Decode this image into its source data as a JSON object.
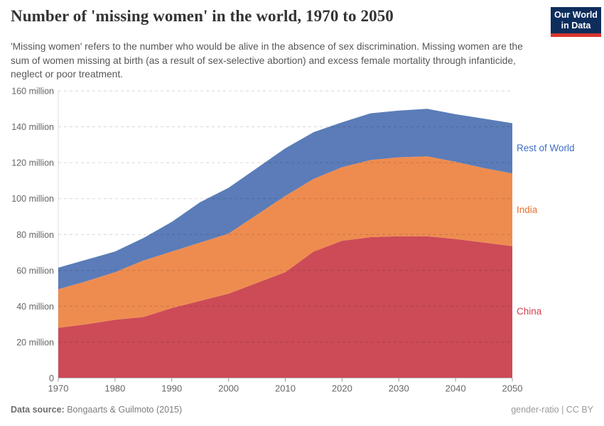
{
  "header": {
    "title": "Number of 'missing women' in the world, 1970 to 2050",
    "subtitle": "'Missing women' refers to the number who would be alive in the absence of sex discrimination. Missing women are the sum of women missing at birth (as a result of sex-selective abortion) and excess female mortality through infanticide, neglect or poor treatment.",
    "logo": {
      "line1": "Our World",
      "line2": "in Data"
    }
  },
  "footer": {
    "datasource_label": "Data source:",
    "datasource_value": "Bongaarts & Guilmoto (2015)",
    "license": "gender-ratio | CC BY"
  },
  "chart_data": {
    "type": "area",
    "stacked": true,
    "title": "Number of 'missing women' in the world, 1970 to 2050",
    "xlabel": "",
    "ylabel": "",
    "grid": "dashed",
    "legend_position": "right-inline",
    "ylim": [
      0,
      160
    ],
    "x": [
      1970,
      1975,
      1980,
      1985,
      1990,
      1995,
      2000,
      2005,
      2010,
      2015,
      2020,
      2025,
      2030,
      2035,
      2040,
      2045,
      2050
    ],
    "series": [
      {
        "name": "China",
        "color": "#cc4b57",
        "label_color": "#d73e4e",
        "values": [
          28,
          30,
          32.5,
          34,
          39,
          43,
          47,
          53,
          59,
          70.5,
          76.5,
          78.5,
          79,
          79,
          77.5,
          75.5,
          73.5
        ]
      },
      {
        "name": "India",
        "color": "#ee8c50",
        "label_color": "#ec6f2d",
        "values": [
          21.5,
          24,
          26.5,
          31.5,
          31.5,
          32.5,
          33.5,
          38,
          42.5,
          40.5,
          41,
          43,
          44,
          44.5,
          43,
          41.5,
          40.5
        ]
      },
      {
        "name": "Rest of World",
        "color": "#5b7cb8",
        "label_color": "#3f6dc6",
        "values": [
          12,
          12,
          11.5,
          12.5,
          16.5,
          22.5,
          25.5,
          26,
          26.5,
          26,
          25,
          26,
          26,
          26.5,
          26.5,
          27.5,
          28
        ]
      }
    ],
    "yticks": [
      {
        "value": 0,
        "label": "0"
      },
      {
        "value": 20,
        "label": "20 million"
      },
      {
        "value": 40,
        "label": "40 million"
      },
      {
        "value": 60,
        "label": "60 million"
      },
      {
        "value": 80,
        "label": "80 million"
      },
      {
        "value": 100,
        "label": "100 million"
      },
      {
        "value": 120,
        "label": "120 million"
      },
      {
        "value": 140,
        "label": "140 million"
      },
      {
        "value": 160,
        "label": "160 million"
      }
    ],
    "xticks": [
      1970,
      1980,
      1990,
      2000,
      2010,
      2020,
      2030,
      2040,
      2050
    ]
  }
}
